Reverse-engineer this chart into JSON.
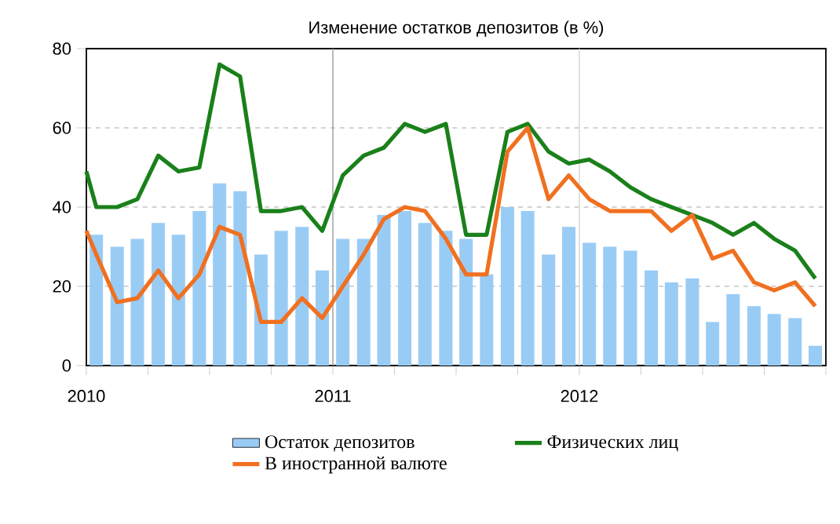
{
  "chart_data": {
    "type": "bar",
    "title": "Изменение остатков депозитов (в %)",
    "x": [
      "2010-01-16",
      "2010-02-15",
      "2010-03-16",
      "2010-04-16",
      "2010-05-16",
      "2010-06-16",
      "2010-07-16",
      "2010-08-16",
      "2010-09-16",
      "2010-10-16",
      "2010-11-16",
      "2010-12-16",
      "2011-01-16",
      "2011-02-15",
      "2011-03-16",
      "2011-04-16",
      "2011-05-16",
      "2011-06-16",
      "2011-07-16",
      "2011-08-16",
      "2011-09-16",
      "2011-10-16",
      "2011-11-16",
      "2011-12-16",
      "2012-01-16",
      "2012-02-15",
      "2012-03-16",
      "2012-04-16",
      "2012-05-16",
      "2012-06-16",
      "2012-07-16",
      "2012-08-16",
      "2012-09-16",
      "2012-10-16",
      "2012-11-16",
      "2012-12-16"
    ],
    "xlim": [
      "2010-01-01",
      "2013-01-01"
    ],
    "xticks": [
      {
        "value": "2010-01-01",
        "label": "2010"
      },
      {
        "value": "2010-04-01",
        "label": null
      },
      {
        "value": "2010-07-01",
        "label": null
      },
      {
        "value": "2010-10-01",
        "label": null
      },
      {
        "value": "2011-01-01",
        "label": "2011"
      },
      {
        "value": "2011-04-01",
        "label": null
      },
      {
        "value": "2011-07-01",
        "label": null
      },
      {
        "value": "2011-10-01",
        "label": null
      },
      {
        "value": "2012-01-01",
        "label": "2012"
      },
      {
        "value": "2012-04-01",
        "label": null
      },
      {
        "value": "2012-07-01",
        "label": null
      },
      {
        "value": "2012-10-01",
        "label": null
      },
      {
        "value": "2013-01-01",
        "label": null
      }
    ],
    "ylim": [
      0,
      80
    ],
    "yticks": [
      0,
      20,
      40,
      60,
      80
    ],
    "grid": "y",
    "legend": "bottom",
    "ref_lines": [
      {
        "axis": "x",
        "value": "2011-01-01",
        "color": "#a6a6a6"
      },
      {
        "axis": "x",
        "value": "2012-01-01",
        "color": "#d9d9d9"
      }
    ],
    "series": [
      {
        "name": "Остаток депозитов",
        "color": "#99ccf5",
        "values": [
          33,
          30,
          32,
          36,
          33,
          39,
          46,
          44,
          28,
          34,
          35,
          24,
          32,
          32,
          38,
          39,
          36,
          34,
          32,
          23,
          40,
          39,
          28,
          35,
          31,
          30,
          29,
          24,
          21,
          22,
          11,
          18,
          15,
          13,
          12,
          5
        ]
      },
      {
        "name": "Физических лиц",
        "type": "line",
        "color": "#1a801a",
        "x": [
          "2010-01-01",
          "2010-01-16",
          "2010-02-15",
          "2010-03-16",
          "2010-04-16",
          "2010-05-16",
          "2010-06-16",
          "2010-07-16",
          "2010-08-16",
          "2010-09-16",
          "2010-10-16",
          "2010-11-16",
          "2010-12-16",
          "2011-01-16",
          "2011-02-15",
          "2011-03-16",
          "2011-04-16",
          "2011-05-16",
          "2011-06-16",
          "2011-07-16",
          "2011-08-16",
          "2011-09-16",
          "2011-10-16",
          "2011-11-16",
          "2011-12-16",
          "2012-01-16",
          "2012-02-15",
          "2012-03-16",
          "2012-04-16",
          "2012-05-16",
          "2012-06-16",
          "2012-07-16",
          "2012-08-16",
          "2012-09-16",
          "2012-10-16",
          "2012-11-16",
          "2012-12-16"
        ],
        "values": [
          49,
          40,
          40,
          42,
          53,
          49,
          50,
          76,
          73,
          39,
          39,
          40,
          34,
          48,
          53,
          55,
          61,
          59,
          61,
          33,
          33,
          59,
          61,
          54,
          51,
          52,
          49,
          45,
          42,
          40,
          38,
          36,
          33,
          36,
          32,
          29,
          22
        ]
      },
      {
        "name": "В иностранной валюте",
        "type": "line",
        "color": "#f07020",
        "x": [
          "2010-01-01",
          "2010-01-16",
          "2010-02-15",
          "2010-03-16",
          "2010-04-16",
          "2010-05-16",
          "2010-06-16",
          "2010-07-16",
          "2010-08-16",
          "2010-09-16",
          "2010-10-16",
          "2010-11-16",
          "2010-12-16",
          "2011-01-16",
          "2011-02-15",
          "2011-03-16",
          "2011-04-16",
          "2011-05-16",
          "2011-06-16",
          "2011-07-16",
          "2011-08-16",
          "2011-09-16",
          "2011-10-16",
          "2011-11-16",
          "2011-12-16",
          "2012-01-16",
          "2012-02-15",
          "2012-03-16",
          "2012-04-16",
          "2012-05-16",
          "2012-06-16",
          "2012-07-16",
          "2012-08-16",
          "2012-09-16",
          "2012-10-16",
          "2012-11-16",
          "2012-12-16"
        ],
        "values": [
          34,
          28,
          16,
          17,
          24,
          17,
          23,
          35,
          33,
          11,
          11,
          17,
          12,
          20,
          28,
          37,
          40,
          39,
          32,
          23,
          23,
          54,
          60,
          42,
          48,
          42,
          39,
          39,
          39,
          34,
          38,
          27,
          29,
          21,
          19,
          21,
          15
        ]
      }
    ]
  }
}
